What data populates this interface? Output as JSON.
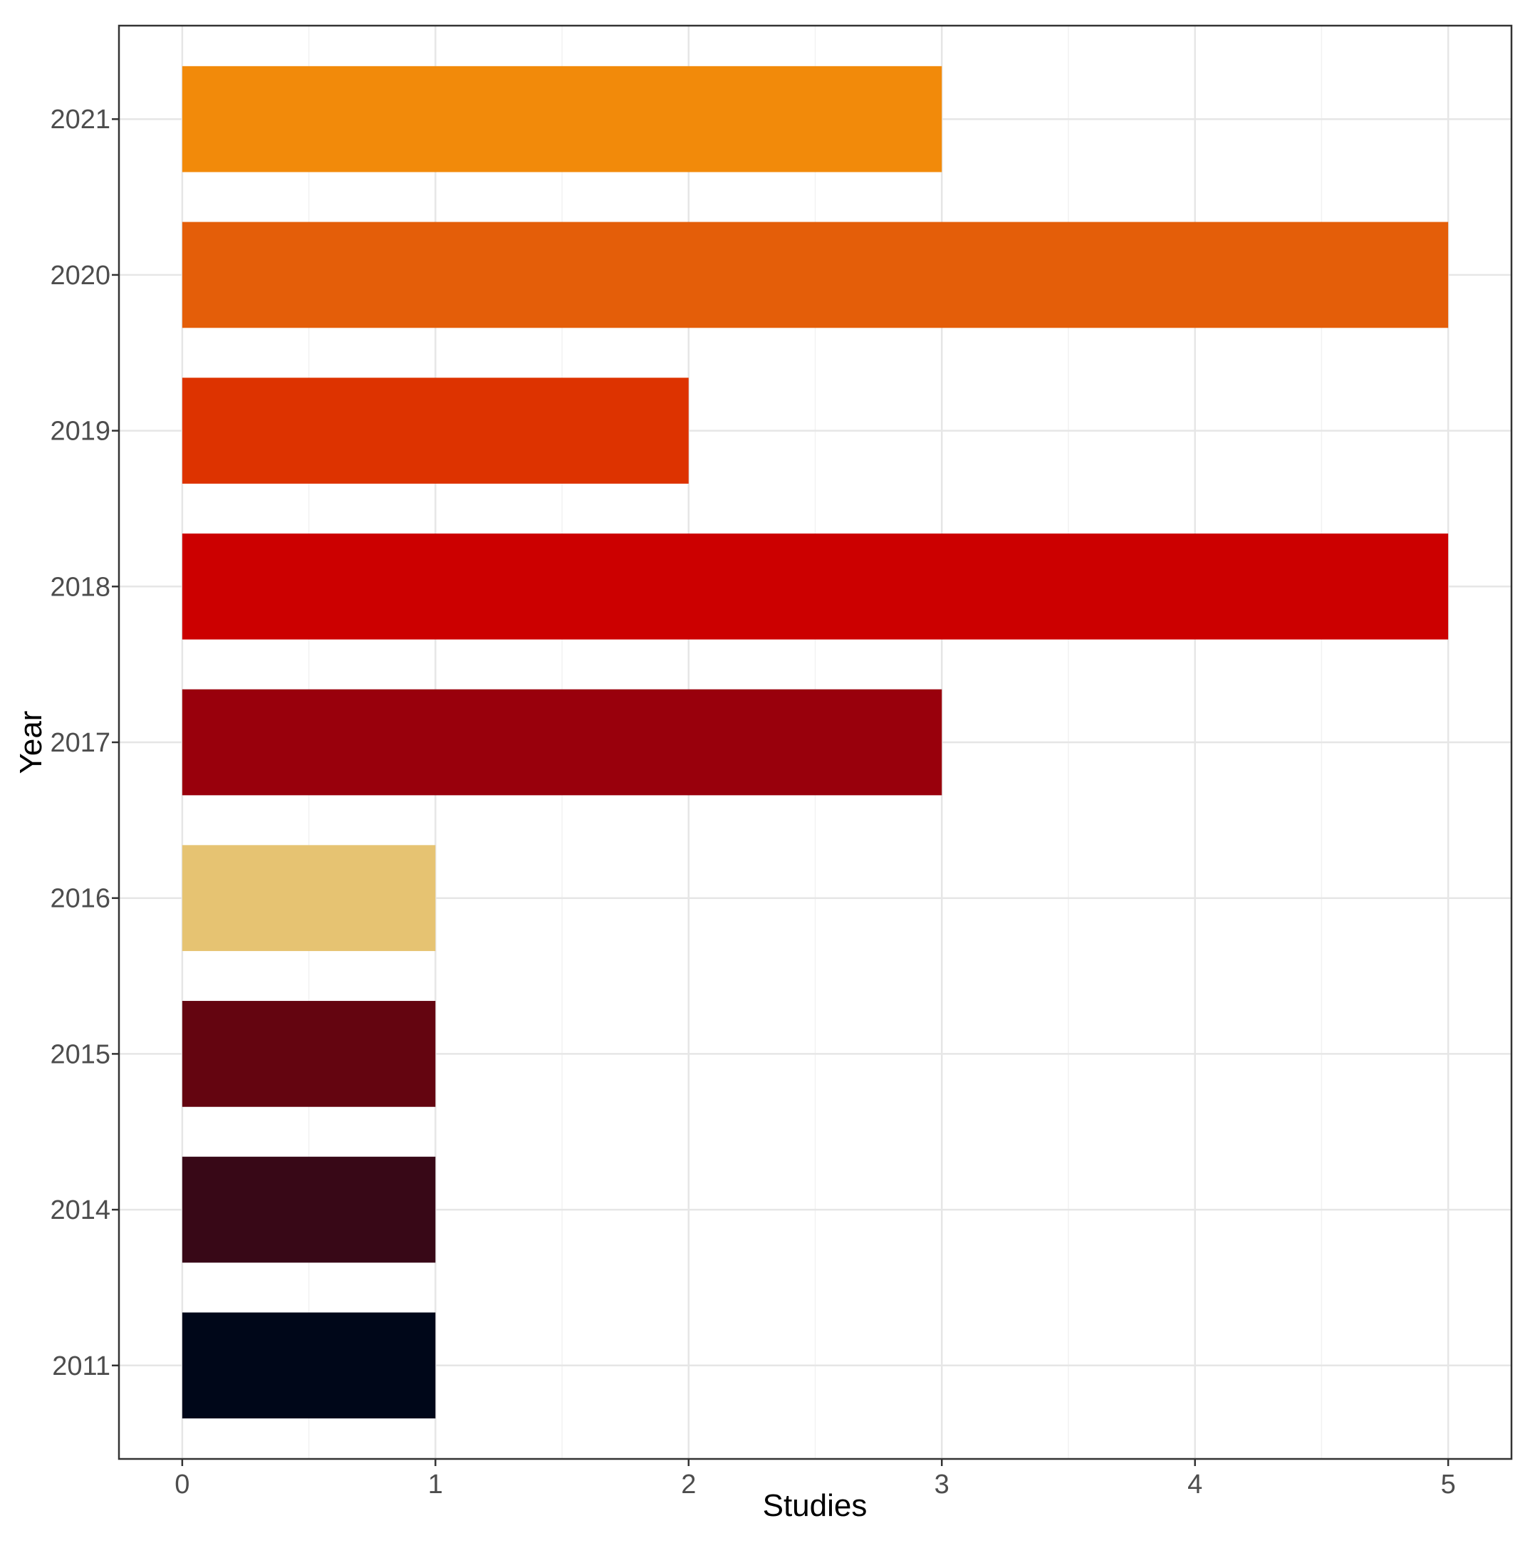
{
  "chart_data": {
    "type": "bar",
    "orientation": "horizontal",
    "title": "",
    "xlabel": "Studies",
    "ylabel": "Year",
    "categories": [
      "2011",
      "2014",
      "2015",
      "2016",
      "2017",
      "2018",
      "2019",
      "2020",
      "2021"
    ],
    "values": [
      1,
      1,
      1,
      1,
      3,
      5,
      2,
      5,
      3
    ],
    "colors": [
      "#000719",
      "#380817",
      "#640510",
      "#e6c372",
      "#99000c",
      "#cc0000",
      "#dd3300",
      "#e45e09",
      "#f28a0a"
    ],
    "xlim": [
      -0.25,
      5.25
    ],
    "x_ticks": [
      0,
      1,
      2,
      3,
      4,
      5
    ],
    "grid": true,
    "legend": "none"
  }
}
